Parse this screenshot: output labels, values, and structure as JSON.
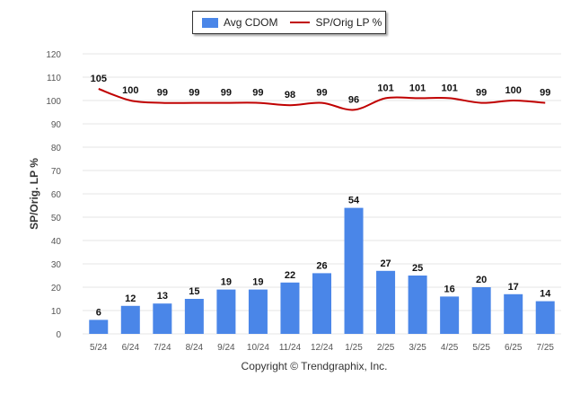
{
  "chart_data": {
    "type": "bar",
    "categories": [
      "5/24",
      "6/24",
      "7/24",
      "8/24",
      "9/24",
      "10/24",
      "11/24",
      "12/24",
      "1/25",
      "2/25",
      "3/25",
      "4/25",
      "5/25",
      "6/25",
      "7/25"
    ],
    "series": [
      {
        "name": "Avg CDOM",
        "type": "bar",
        "color": "#4a86e8",
        "values": [
          6,
          12,
          13,
          15,
          19,
          19,
          22,
          26,
          54,
          27,
          25,
          16,
          20,
          17,
          14
        ]
      },
      {
        "name": "SP/Orig LP %",
        "type": "line",
        "color": "#c00000",
        "values": [
          105,
          100,
          99,
          99,
          99,
          99,
          98,
          99,
          96,
          101,
          101,
          101,
          99,
          100,
          99
        ]
      }
    ],
    "ylabel": "SP/Orig. LP %",
    "ylim": [
      0,
      120
    ],
    "yticks": [
      0,
      10,
      20,
      30,
      40,
      50,
      60,
      70,
      80,
      90,
      100,
      110,
      120
    ],
    "grid": true,
    "legend_position": "top-center"
  },
  "copyright": "Copyright © Trendgraphix, Inc."
}
